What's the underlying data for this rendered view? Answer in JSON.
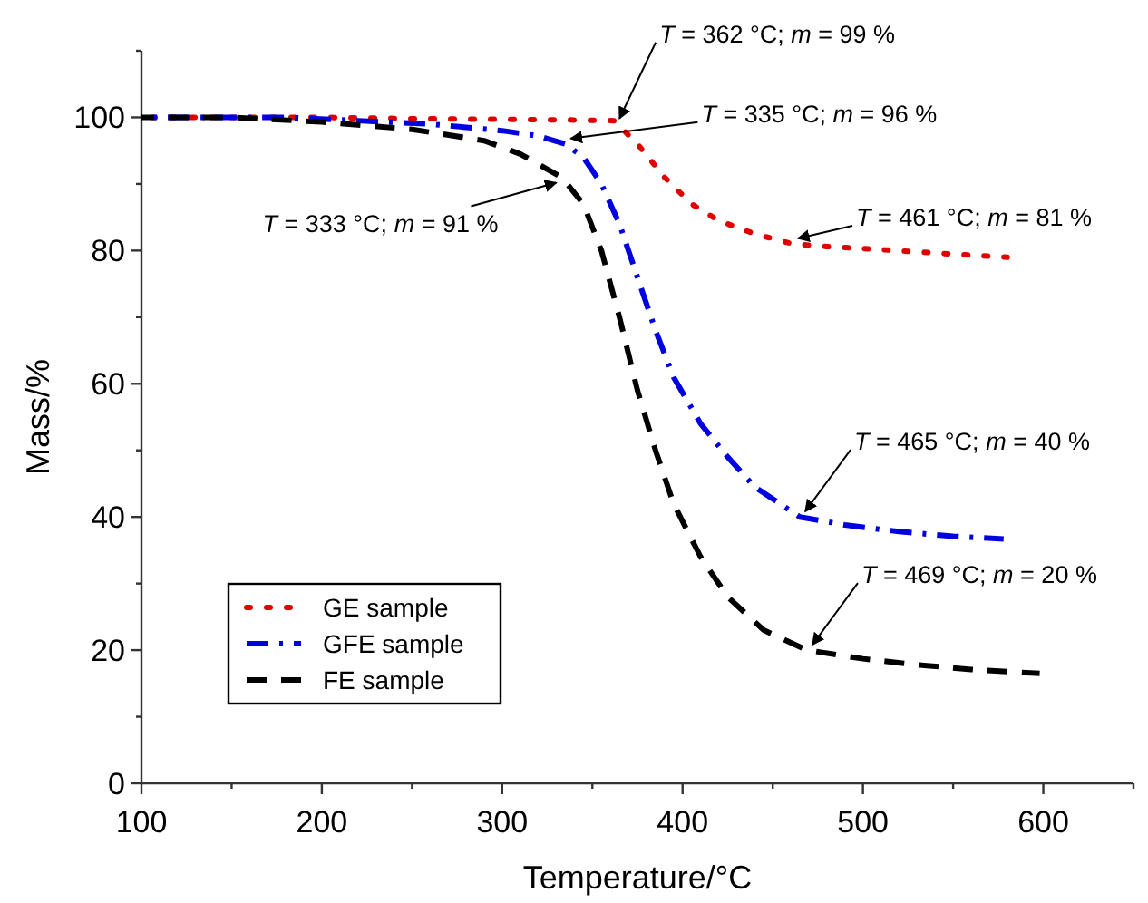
{
  "chart_data": {
    "type": "line",
    "xlabel": "Temperature/°C",
    "ylabel": "Mass/%",
    "xlim": [
      100,
      650
    ],
    "ylim": [
      0,
      110
    ],
    "xticks": [
      100,
      {
        "value": 150,
        "label": null
      },
      200,
      {
        "value": 250,
        "label": null
      },
      300,
      {
        "value": 350,
        "label": null
      },
      400,
      {
        "value": 450,
        "label": null
      },
      500,
      {
        "value": 550,
        "label": null
      },
      600,
      {
        "value": 650,
        "label": null
      }
    ],
    "yticks": [
      0,
      {
        "value": 10,
        "label": null
      },
      20,
      {
        "value": 30,
        "label": null
      },
      40,
      {
        "value": 50,
        "label": null
      },
      60,
      {
        "value": 70,
        "label": null
      },
      80,
      {
        "value": 90,
        "label": null
      },
      100,
      {
        "value": 110,
        "label": null
      }
    ],
    "grid": false,
    "legend": "bottom left",
    "series": [
      {
        "name": "GE sample",
        "color": "#e00000",
        "line_style": "dotted",
        "x": [
          100,
          150,
          200,
          250,
          300,
          340,
          362,
          375,
          390,
          405,
          420,
          440,
          461,
          480,
          500,
          530,
          560,
          580
        ],
        "values": [
          100,
          100,
          100,
          99.8,
          99.7,
          99.6,
          99.5,
          96,
          91,
          87,
          84.5,
          82.5,
          81,
          80.6,
          80.3,
          79.8,
          79.3,
          79
        ]
      },
      {
        "name": "GFE sample",
        "color": "#0000e0",
        "line_style": "dashdot",
        "x": [
          100,
          150,
          180,
          220,
          260,
          300,
          320,
          335,
          345,
          355,
          365,
          375,
          385,
          395,
          410,
          425,
          440,
          465,
          490,
          520,
          550,
          578
        ],
        "values": [
          100,
          100,
          100,
          99.5,
          99,
          98,
          97.2,
          96,
          94,
          90,
          84,
          76,
          68,
          61,
          54,
          49,
          44.5,
          40,
          38.8,
          37.8,
          37.1,
          36.7
        ]
      },
      {
        "name": "FE sample",
        "color": "#000000",
        "line_style": "dashed",
        "x": [
          100,
          150,
          200,
          250,
          290,
          310,
          333,
          345,
          355,
          365,
          375,
          385,
          395,
          410,
          425,
          445,
          469,
          500,
          530,
          560,
          598
        ],
        "values": [
          100,
          100,
          99.3,
          98.2,
          96.5,
          94.5,
          91,
          87,
          80,
          70,
          59,
          50,
          42,
          34,
          28,
          23,
          20,
          18.7,
          17.8,
          17.1,
          16.5
        ]
      }
    ],
    "annotations": [
      {
        "text": "T = 362 °C; m = 99 %",
        "x": 362,
        "y": 99
      },
      {
        "text": "T = 335 °C; m = 96 %",
        "x": 335,
        "y": 96
      },
      {
        "text": "T = 333 °C; m = 91 %",
        "x": 333,
        "y": 91
      },
      {
        "text": "T = 461 °C; m = 81 %",
        "x": 461,
        "y": 81
      },
      {
        "text": "T = 465 °C; m = 40 %",
        "x": 465,
        "y": 40
      },
      {
        "text": "T = 469 °C; m = 20 %",
        "x": 469,
        "y": 20
      }
    ]
  }
}
